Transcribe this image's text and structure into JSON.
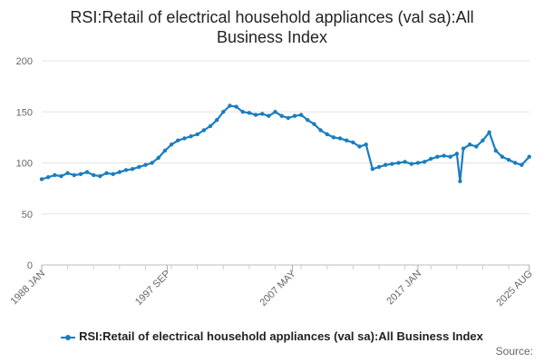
{
  "chart_data": {
    "type": "line",
    "title": "RSI:Retail of electrical household appliances (val sa):All Business Index",
    "xlabel": "",
    "ylabel": "",
    "ylim": [
      0,
      200
    ],
    "y_ticks": [
      0,
      50,
      100,
      150,
      200
    ],
    "x_range": [
      1988.0,
      2025.6
    ],
    "x_tick_labels": [
      {
        "label": "1988 JAN",
        "x": 1988.0
      },
      {
        "label": "1997 SEP",
        "x": 1997.67
      },
      {
        "label": "2007 MAY",
        "x": 2007.33
      },
      {
        "label": "2017 JAN",
        "x": 2017.0
      },
      {
        "label": "2025 AUG",
        "x": 2025.58
      }
    ],
    "grid": "horizontal",
    "legend_position": "bottom",
    "series": [
      {
        "name": "RSI:Retail of electrical household appliances (val sa):All Business Index",
        "color": "#1a7dbf",
        "x": [
          1988.0,
          1988.5,
          1989.0,
          1989.5,
          1990.0,
          1990.5,
          1991.0,
          1991.5,
          1992.0,
          1992.5,
          1993.0,
          1993.5,
          1994.0,
          1994.5,
          1995.0,
          1995.5,
          1996.0,
          1996.5,
          1997.0,
          1997.5,
          1998.0,
          1998.5,
          1999.0,
          1999.5,
          2000.0,
          2000.5,
          2001.0,
          2001.5,
          2002.0,
          2002.5,
          2003.0,
          2003.5,
          2004.0,
          2004.5,
          2005.0,
          2005.5,
          2006.0,
          2006.5,
          2007.0,
          2007.5,
          2008.0,
          2008.5,
          2009.0,
          2009.5,
          2010.0,
          2010.5,
          2011.0,
          2011.5,
          2012.0,
          2012.5,
          2013.0,
          2013.5,
          2014.0,
          2014.5,
          2015.0,
          2015.5,
          2016.0,
          2016.5,
          2017.0,
          2017.5,
          2018.0,
          2018.5,
          2019.0,
          2019.5,
          2020.0,
          2020.25,
          2020.5,
          2021.0,
          2021.5,
          2022.0,
          2022.5,
          2023.0,
          2023.5,
          2024.0,
          2024.5,
          2025.0,
          2025.58
        ],
        "values": [
          84,
          86,
          88,
          87,
          90,
          88,
          89,
          91,
          88,
          87,
          90,
          89,
          91,
          93,
          94,
          96,
          98,
          100,
          105,
          112,
          118,
          122,
          124,
          126,
          128,
          132,
          136,
          142,
          150,
          156,
          155,
          150,
          149,
          147,
          148,
          146,
          150,
          146,
          144,
          146,
          147,
          142,
          138,
          132,
          128,
          125,
          124,
          122,
          120,
          116,
          118,
          94,
          96,
          98,
          99,
          100,
          101,
          99,
          100,
          101,
          104,
          106,
          107,
          106,
          109,
          82,
          114,
          118,
          116,
          122,
          130,
          112,
          106,
          103,
          100,
          98,
          106
        ]
      }
    ]
  },
  "legend": {
    "label": "RSI:Retail of electrical household appliances (val sa):All Business Index"
  },
  "source_label": "Source:"
}
